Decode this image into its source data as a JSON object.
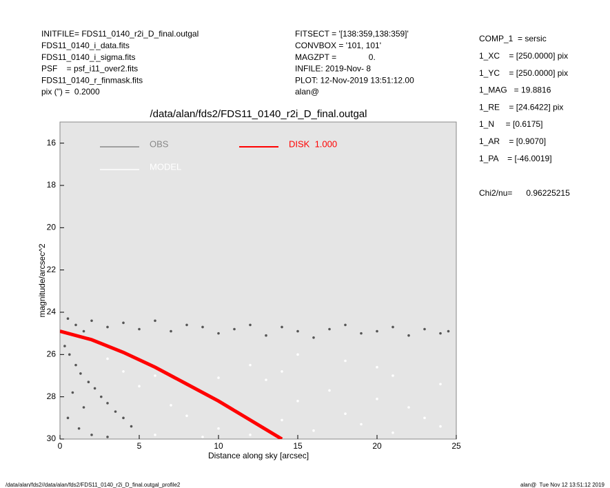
{
  "header": {
    "left": [
      "INITFILE= FDS11_0140_r2i_D_final.outgal",
      "FDS11_0140_i_data.fits",
      "FDS11_0140_i_sigma.fits",
      "PSF    = psf_i11_over2.fits",
      "FDS11_0140_r_finmask.fits",
      "pix (\") =  0.2000"
    ],
    "middle": [
      "FITSECT = '[138:359,138:359]'",
      "CONVBOX = '101, 101'",
      "MAGZPT =              0.",
      "INFILE: 2019-Nov- 8",
      "PLOT: 12-Nov-2019 13:51:12.00",
      "alan@"
    ],
    "right": [
      "COMP_1  = sersic",
      "1_XC    = [250.0000] pix",
      "1_YC    = [250.0000] pix",
      "1_MAG   = 19.8816",
      "1_RE    = [24.6422] pix",
      "1_N     = [0.6175]",
      "1_AR    = [0.9070]",
      "1_PA    = [-46.0019]"
    ],
    "chi": "Chi2/nu=      0.96225215"
  },
  "footer": {
    "left": "/data/alan/fds2//data/alan/fds2/FDS11_0140_r2i_D_final.outgal_profile2",
    "right": "alan@  Tue Nov 12 13:51:12 2019"
  },
  "chart_data": {
    "type": "scatter",
    "title": "/data/alan/fds2/FDS11_0140_r2i_D_final.outgal",
    "xlabel": "Distance along sky [arcsec]",
    "ylabel": "magnitude/arcsec^2",
    "xlim": [
      0,
      25
    ],
    "xticks": [
      0,
      5,
      10,
      15,
      20,
      25
    ],
    "ylim": [
      30,
      15
    ],
    "yticks": [
      16,
      18,
      20,
      22,
      24,
      26,
      28,
      30
    ],
    "background": "#e5e5e5",
    "series": [
      {
        "name": "OBS",
        "color": "#555555",
        "legend_color": "#888888",
        "x": [
          0.5,
          1,
          1.5,
          2,
          3,
          4,
          5,
          6,
          7,
          8,
          9,
          10,
          11,
          12,
          13,
          14,
          15,
          16,
          17,
          18,
          19,
          20,
          21,
          22,
          23,
          24,
          24.5,
          0.3,
          0.6,
          1,
          1.3,
          1.8,
          2.2,
          2.6,
          3,
          3.5,
          4,
          4.5,
          0.5,
          1.2,
          2,
          3,
          0.8,
          1.5
        ],
        "values": [
          24.3,
          24.6,
          24.9,
          24.4,
          24.7,
          24.5,
          24.8,
          24.4,
          24.9,
          24.6,
          24.7,
          25.0,
          24.8,
          24.6,
          25.1,
          24.7,
          24.9,
          25.2,
          24.8,
          24.6,
          25.0,
          24.9,
          24.7,
          25.1,
          24.8,
          25.0,
          24.9,
          25.6,
          26.0,
          26.5,
          26.9,
          27.3,
          27.6,
          28.0,
          28.3,
          28.7,
          29.0,
          29.4,
          29.0,
          29.5,
          29.8,
          29.9,
          27.8,
          28.5
        ]
      },
      {
        "name": "MODEL",
        "color": "#ffffff",
        "legend_color": "#ffffff",
        "x": [
          3,
          4,
          5,
          6,
          7,
          8,
          9,
          10,
          11,
          12,
          13,
          14,
          15,
          16,
          17,
          18,
          19,
          20,
          21,
          22,
          23,
          24,
          6,
          9,
          12,
          15,
          18,
          21,
          24,
          10,
          14,
          20
        ],
        "values": [
          26.2,
          26.8,
          27.5,
          27.0,
          28.4,
          28.9,
          27.8,
          29.5,
          28.6,
          29.8,
          27.2,
          29.1,
          28.2,
          29.6,
          27.7,
          28.8,
          29.3,
          28.1,
          29.7,
          28.5,
          29.0,
          29.4,
          29.8,
          29.9,
          26.5,
          26.0,
          26.3,
          27.0,
          27.4,
          27.1,
          26.8,
          26.6
        ]
      },
      {
        "name": "DISK  1.000",
        "color": "#ff0000",
        "legend_color": "#ff0000",
        "line": true,
        "x": [
          0,
          2,
          4,
          6,
          8,
          10,
          12,
          14
        ],
        "values": [
          24.9,
          25.3,
          25.9,
          26.6,
          27.4,
          28.2,
          29.1,
          30
        ]
      }
    ]
  }
}
